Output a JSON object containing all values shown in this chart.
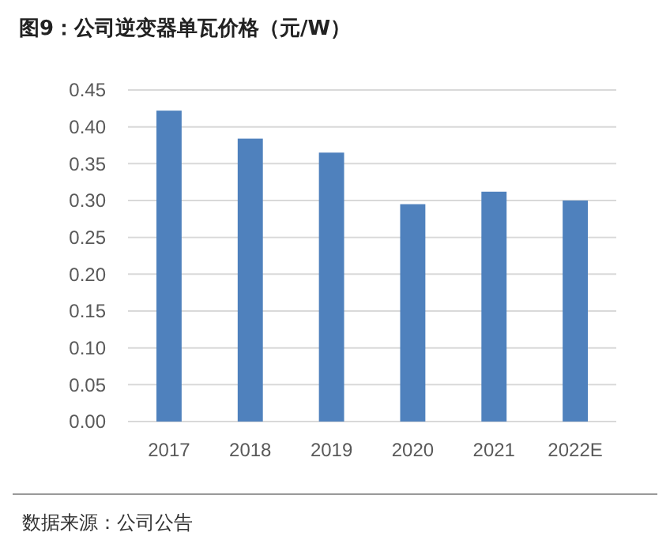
{
  "chart_data": {
    "type": "bar",
    "title": "图9：公司逆变器单瓦价格（元/W）",
    "categories": [
      "2017",
      "2018",
      "2019",
      "2020",
      "2021",
      "2022E"
    ],
    "values": [
      0.422,
      0.384,
      0.365,
      0.295,
      0.312,
      0.3
    ],
    "color": "#4f81bd",
    "ylim": [
      0,
      0.45
    ],
    "yticks": [
      {
        "value": 0,
        "label": "0.00"
      },
      {
        "value": 0.05,
        "label": "0.05"
      },
      {
        "value": 0.1,
        "label": "0.10"
      },
      {
        "value": 0.15,
        "label": "0.15"
      },
      {
        "value": 0.2,
        "label": "0.20"
      },
      {
        "value": 0.25,
        "label": "0.25"
      },
      {
        "value": 0.3,
        "label": "0.30"
      },
      {
        "value": 0.35,
        "label": "0.35"
      },
      {
        "value": 0.4,
        "label": "0.40"
      },
      {
        "value": 0.45,
        "label": "0.45"
      }
    ],
    "grid": "y",
    "annotations": [
      "数据来源：公司公告"
    ]
  }
}
